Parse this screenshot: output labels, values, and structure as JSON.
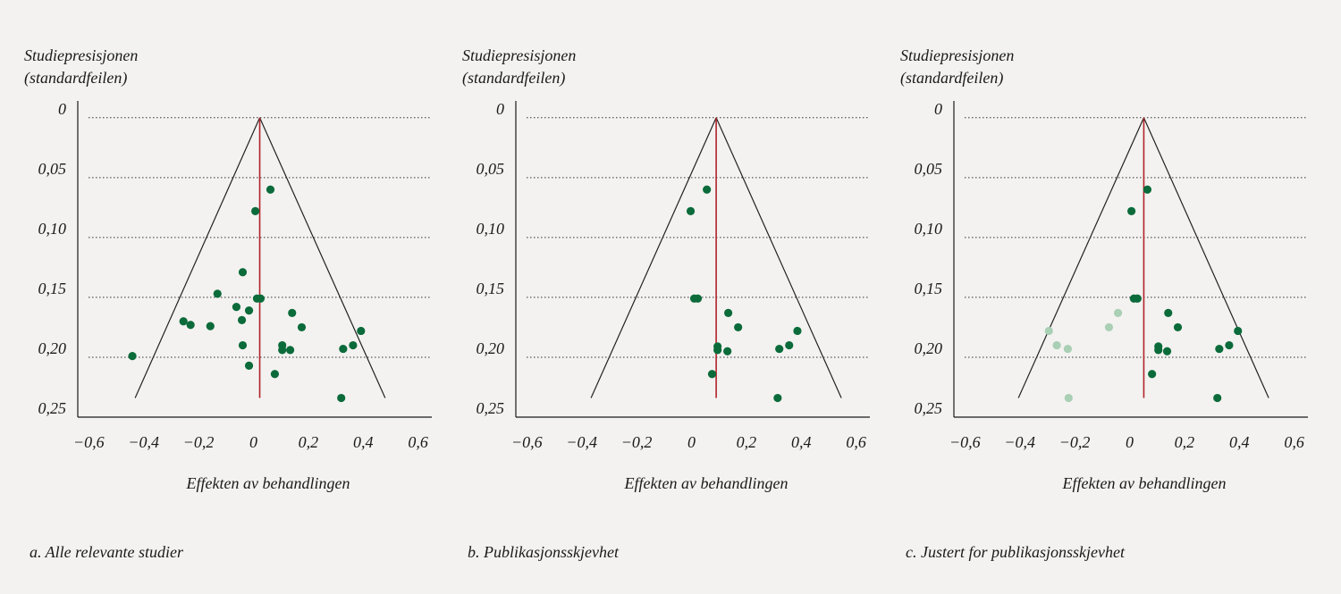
{
  "chart_data": [
    {
      "type": "scatter",
      "ylabel": [
        "Studiepresisjonen",
        "(standardfeilen)"
      ],
      "xlabel": "Effekten av behandlingen",
      "caption": "a. Alle relevante studier",
      "xlim": [
        -0.64,
        0.65
      ],
      "ylim": [
        -0.014,
        0.25
      ],
      "y_inverted": true,
      "xticks": [
        {
          "value": -0.6,
          "label": "−0,6"
        },
        {
          "value": -0.4,
          "label": "−0,4"
        },
        {
          "value": -0.2,
          "label": "−0,2"
        },
        0,
        {
          "value": 0.2,
          "label": "0,2"
        },
        {
          "value": 0.4,
          "label": "0,4"
        },
        {
          "value": 0.6,
          "label": "0,6"
        }
      ],
      "yticks": [
        0,
        {
          "value": 0.05,
          "label": "0,05"
        },
        {
          "value": 0.1,
          "label": "0,10"
        },
        {
          "value": 0.15,
          "label": "0,15"
        },
        {
          "value": 0.2,
          "label": "0,20"
        },
        {
          "value": 0.25,
          "label": "0,25"
        }
      ],
      "grid": true,
      "pooled_effect": 0.023,
      "funnel_bottom_se": 0.234,
      "funnel_bottom_x": [
        -0.431,
        0.48
      ],
      "series": [
        {
          "color": "#0b6b3a",
          "x": [
            0.062,
            0.007,
            -0.039,
            -0.131,
            0.013,
            0.026,
            -0.062,
            -0.016,
            0.141,
            -0.042,
            -0.255,
            -0.229,
            -0.157,
            0.176,
            0.392,
            -0.039,
            0.105,
            0.105,
            0.134,
            0.327,
            0.363,
            -0.441,
            -0.016,
            0.078,
            0.32
          ],
          "values": [
            0.06,
            0.078,
            0.129,
            0.147,
            0.151,
            0.151,
            0.158,
            0.161,
            0.163,
            0.169,
            0.17,
            0.173,
            0.174,
            0.175,
            0.178,
            0.19,
            0.19,
            0.194,
            0.194,
            0.193,
            0.19,
            0.199,
            0.207,
            0.214,
            0.234
          ]
        }
      ]
    },
    {
      "type": "scatter",
      "ylabel": [
        "Studiepresisjonen",
        "(standardfeilen)"
      ],
      "xlabel": "Effekten av behandlingen",
      "caption": "b. Publikasjonsskjevhet",
      "xlim": [
        -0.64,
        0.65
      ],
      "ylim": [
        -0.014,
        0.25
      ],
      "y_inverted": true,
      "xticks": [
        {
          "value": -0.6,
          "label": "−0,6"
        },
        {
          "value": -0.4,
          "label": "−0,4"
        },
        {
          "value": -0.2,
          "label": "−0,2"
        },
        0,
        {
          "value": 0.2,
          "label": "0,2"
        },
        {
          "value": 0.4,
          "label": "0,4"
        },
        {
          "value": 0.6,
          "label": "0,6"
        }
      ],
      "yticks": [
        0,
        {
          "value": 0.05,
          "label": "0,05"
        },
        {
          "value": 0.1,
          "label": "0,10"
        },
        {
          "value": 0.15,
          "label": "0,15"
        },
        {
          "value": 0.2,
          "label": "0,20"
        },
        {
          "value": 0.25,
          "label": "0,25"
        }
      ],
      "grid": true,
      "pooled_effect": 0.09,
      "funnel_bottom_se": 0.234,
      "funnel_bottom_x": [
        -0.366,
        0.546
      ],
      "series": [
        {
          "color": "#0b6b3a",
          "x": [
            0.056,
            -0.003,
            0.01,
            0.023,
            0.134,
            0.17,
            0.386,
            0.356,
            0.32,
            0.095,
            0.095,
            0.131,
            0.075,
            0.314
          ],
          "values": [
            0.06,
            0.078,
            0.151,
            0.151,
            0.163,
            0.175,
            0.178,
            0.19,
            0.193,
            0.191,
            0.194,
            0.195,
            0.214,
            0.234
          ]
        }
      ]
    },
    {
      "type": "scatter",
      "ylabel": [
        "Studiepresisjonen",
        "(standardfeilen)"
      ],
      "xlabel": "Effekten av behandlingen",
      "caption": "c. Justert for publikasjonsskjevhet",
      "xlim": [
        -0.64,
        0.65
      ],
      "ylim": [
        -0.014,
        0.25
      ],
      "y_inverted": true,
      "xticks": [
        {
          "value": -0.6,
          "label": "−0,6"
        },
        {
          "value": -0.4,
          "label": "−0,4"
        },
        {
          "value": -0.2,
          "label": "−0,2"
        },
        0,
        {
          "value": 0.2,
          "label": "0,2"
        },
        {
          "value": 0.4,
          "label": "0,4"
        },
        {
          "value": 0.6,
          "label": "0,6"
        }
      ],
      "yticks": [
        0,
        {
          "value": 0.05,
          "label": "0,05"
        },
        {
          "value": 0.1,
          "label": "0,10"
        },
        {
          "value": 0.15,
          "label": "0,15"
        },
        {
          "value": 0.2,
          "label": "0,20"
        },
        {
          "value": 0.25,
          "label": "0,25"
        }
      ],
      "grid": true,
      "pooled_effect": 0.052,
      "funnel_bottom_se": 0.234,
      "funnel_bottom_x": [
        -0.405,
        0.507
      ],
      "series": [
        {
          "color": "#0b6b3a",
          "x": [
            0.065,
            0.007,
            0.016,
            0.029,
            0.141,
            0.176,
            0.395,
            0.363,
            0.327,
            0.105,
            0.105,
            0.137,
            0.082,
            0.32
          ],
          "values": [
            0.06,
            0.078,
            0.151,
            0.151,
            0.163,
            0.175,
            0.178,
            0.19,
            0.193,
            0.191,
            0.194,
            0.195,
            0.214,
            0.234
          ]
        },
        {
          "color": "#a9cfb4",
          "x": [
            -0.042,
            -0.075,
            -0.294,
            -0.265,
            -0.225,
            -0.222
          ],
          "values": [
            0.163,
            0.175,
            0.178,
            0.19,
            0.193,
            0.234
          ]
        }
      ]
    }
  ]
}
